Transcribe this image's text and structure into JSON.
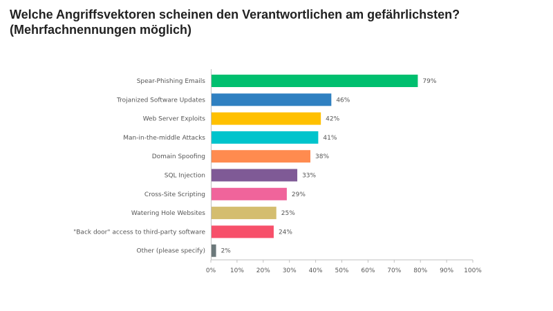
{
  "header": {
    "title_line1": "Welche Angriffsvektoren scheinen den Verantwortlichen  am gefährlichsten?",
    "title_line2": "(Mehrfachnennungen möglich)"
  },
  "chart_data": {
    "type": "bar",
    "orientation": "horizontal",
    "title": "Welche Angriffsvektoren scheinen den Verantwortlichen  am gefährlichsten? (Mehrfachnennungen möglich)",
    "categories": [
      "Spear-Phishing Emails",
      "Trojanized Software Updates",
      "Web Server Exploits",
      "Man-in-the-middle Attacks",
      "Domain Spoofing",
      "SQL Injection",
      "Cross-Site Scripting",
      "Watering Hole Websites",
      "\"Back door\" access to third-party software",
      "Other (please specify)"
    ],
    "values": [
      79,
      46,
      42,
      41,
      38,
      33,
      29,
      25,
      24,
      2
    ],
    "value_labels": [
      "79%",
      "46%",
      "42%",
      "41%",
      "38%",
      "33%",
      "29%",
      "25%",
      "24%",
      "2%"
    ],
    "colors": [
      "#00bf6f",
      "#2f80c1",
      "#ffc000",
      "#00c4cc",
      "#ff8b4f",
      "#7f5a96",
      "#f0649b",
      "#d4bd6f",
      "#f7506a",
      "#6b787a"
    ],
    "xlim": [
      0,
      100
    ],
    "xticks": [
      0,
      10,
      20,
      30,
      40,
      50,
      60,
      70,
      80,
      90,
      100
    ],
    "xtick_labels": [
      "0%",
      "10%",
      "20%",
      "30%",
      "40%",
      "50%",
      "60%",
      "70%",
      "80%",
      "90%",
      "100%"
    ],
    "xlabel": "",
    "ylabel": "",
    "grid": false,
    "legend": "none"
  }
}
